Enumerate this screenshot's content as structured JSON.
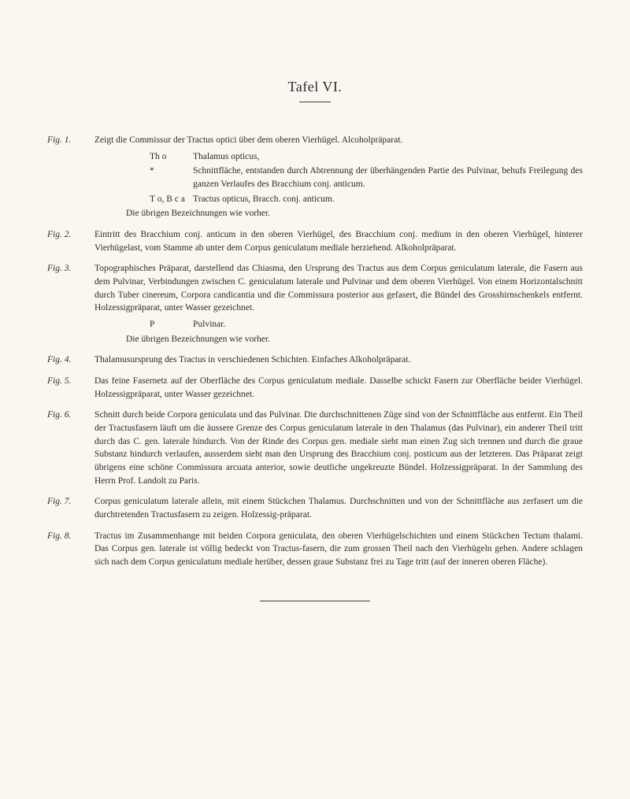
{
  "title": "Tafel VI.",
  "entries": [
    {
      "label": "Fig. 1.",
      "text": "Zeigt die Commissur der Tractus optici über dem oberen Vierhügel.   Alcoholpräparat.",
      "defs": [
        {
          "key": "Th o",
          "val": "Thalamus opticus,"
        },
        {
          "key": "*",
          "val": "Schnittfläche, entstanden durch Abtrennung der überhängenden Partie des Pulvinar, behufs Freilegung des ganzen Verlaufes des Bracchium conj. anticum."
        },
        {
          "key": "T o, B c a",
          "val": "Tractus opticus, Bracch. conj. anticum."
        }
      ],
      "note": "Die übrigen Bezeichnungen wie vorher."
    },
    {
      "label": "Fig. 2.",
      "text": "Eintritt des Bracchium conj. anticum in den oberen Vierhügel, des Bracchium conj. medium in den oberen Vierhügel, hinterer Vierhügelast, vom Stamme ab unter dem Corpus geniculatum mediale herziehend.  Alkoholpräparat."
    },
    {
      "label": "Fig. 3.",
      "text": "Topographisches Präparat, darstellend das Chiasma, den Ursprung des Tractus aus dem Corpus geniculatum laterale, die Fasern aus dem Pulvinar, Verbindungen zwischen C. geniculatum laterale und Pulvinar und dem oberen Vierhügel. Von einem Horizontalschnitt durch Tuber cinereum, Corpora candicantia und die Commissura posterior aus gefasert, die Bündel des Grosshirnschenkels entfernt.  Holzessigpräparat, unter Wasser gezeichnet.",
      "defs": [
        {
          "key": "P",
          "val": "Pulvinar."
        }
      ],
      "note": "Die übrigen Bezeichnungen wie vorher."
    },
    {
      "label": "Fig. 4.",
      "text": "Thalamusursprung des Tractus in verschiedenen Schichten.  Einfaches Alkoholpräparat."
    },
    {
      "label": "Fig. 5.",
      "text": "Das feine Fasernetz auf der Oberfläche des Corpus geniculatum mediale. Dasselbe schickt Fasern zur Oberfläche beider Vierhügel.  Holzessigpräparat, unter Wasser gezeichnet."
    },
    {
      "label": "Fig. 6.",
      "text": "Schnitt durch beide Corpora geniculata und das Pulvinar. Die durchschnittenen Züge sind von der Schnittfläche aus entfernt. Ein Theil der Tractusfasern läuft um die äussere Grenze des Corpus geniculatum laterale in den Thalamus (das Pulvinar), ein anderer Theil tritt durch das C. gen. laterale hindurch. Von der Rinde des Corpus gen. mediale sieht man einen Zug sich trennen und durch die graue Substanz hindurch verlaufen, ausserdem sieht man den Ursprung des Bracchium conj. posticum aus der letzteren. Das Präparat zeigt übrigens eine schöne Commissura arcuata anterior, sowie deutliche ungekreuzte Bündel. Holzessigpräparat. In der Sammlung des Herrn Prof. Landolt zu Paris."
    },
    {
      "label": "Fig. 7.",
      "text": "Corpus geniculatum laterale allein, mit einem Stückchen Thalamus. Durchschnitten und von der Schnittfläche aus zerfasert um die durchtretenden Tractusfasern zu zeigen. Holzessig-präparat."
    },
    {
      "label": "Fig. 8.",
      "text": "Tractus im Zusammenhange mit beiden Corpora geniculata, den oberen Vierhügelschichten und einem Stückchen Tectum thalami. Das Corpus gen. laterale ist völlig bedeckt von Tractus-fasern, die zum grossen Theil nach den Vierhügeln gehen. Andere schlagen sich nach dem Corpus geniculatum mediale herüber, dessen graue Substanz frei zu Tage tritt (auf der inneren oberen Fläche)."
    }
  ]
}
